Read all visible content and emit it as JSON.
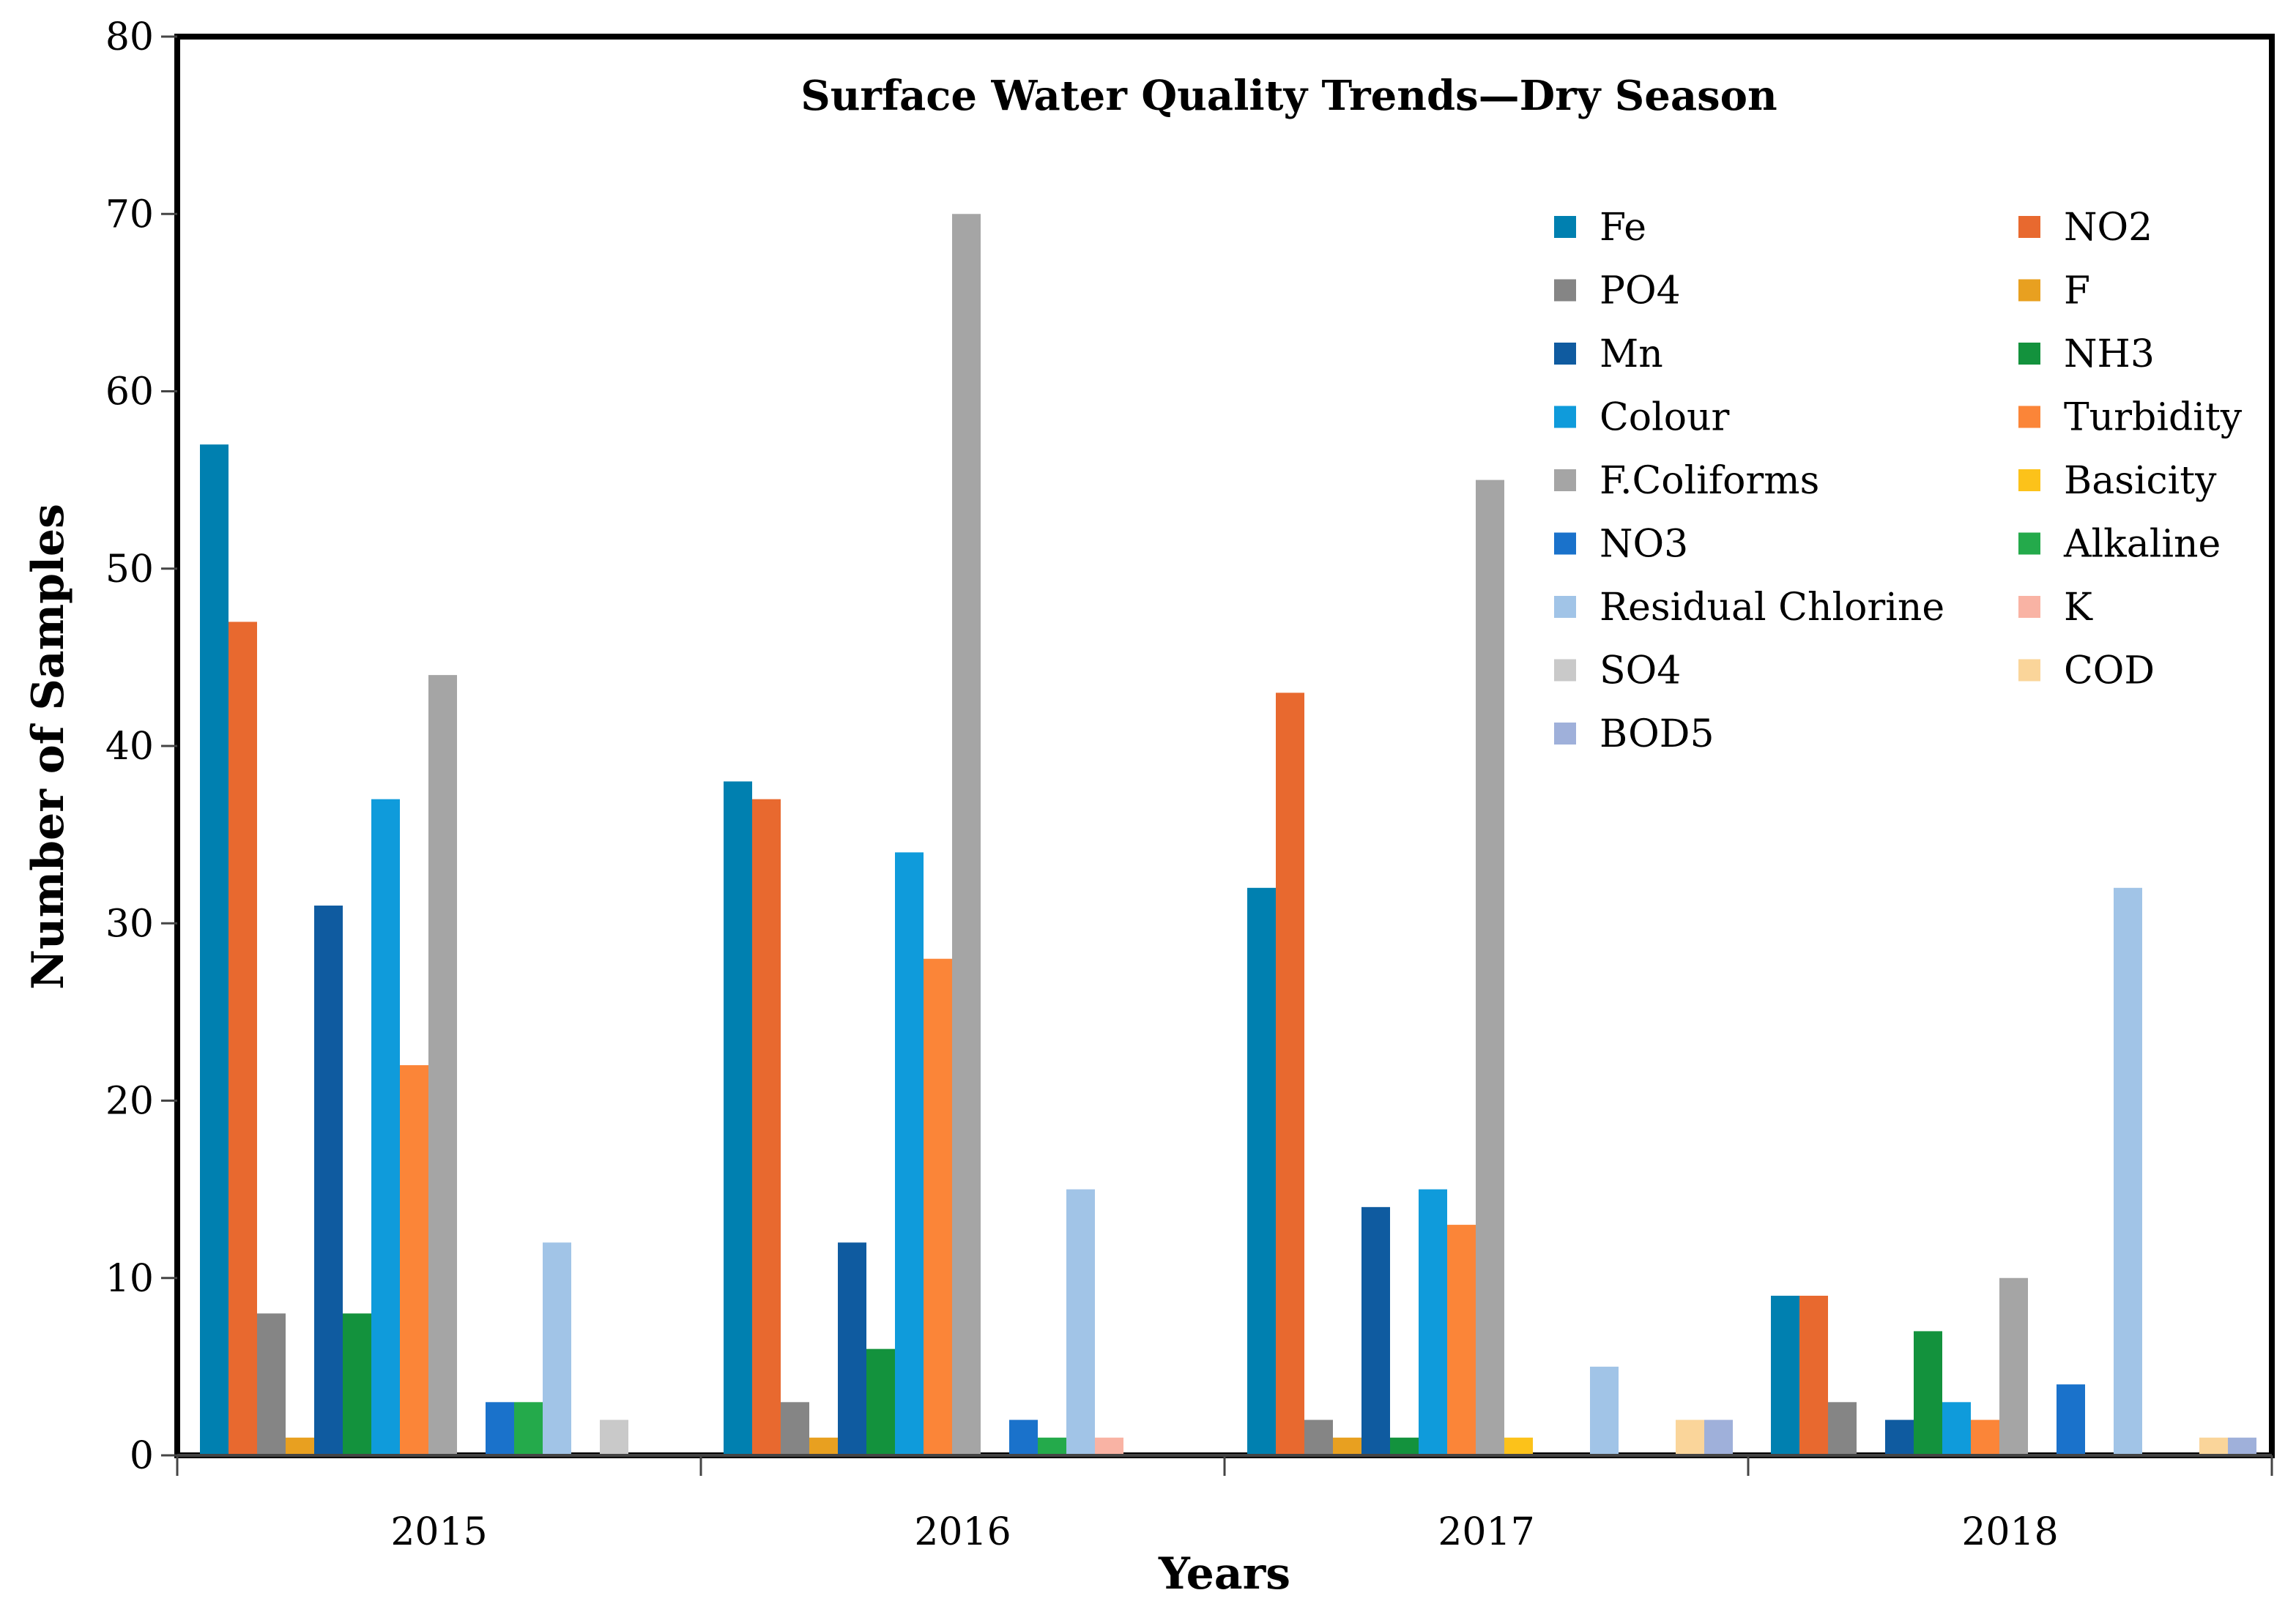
{
  "chart_data": {
    "type": "bar",
    "title": "Surface Water Quality Trends—Dry Season",
    "xlabel": "Years",
    "ylabel": "Number of Samples",
    "ylim": [
      0,
      80
    ],
    "yticks": [
      0,
      10,
      20,
      30,
      40,
      50,
      60,
      70,
      80
    ],
    "grid": false,
    "legend_position": "top-right",
    "categories": [
      "2015",
      "2016",
      "2017",
      "2018"
    ],
    "series": [
      {
        "name": "Fe",
        "color": "#0080B0",
        "values": [
          57,
          38,
          32,
          9
        ]
      },
      {
        "name": "NO2",
        "color": "#E8692F",
        "values": [
          47,
          37,
          43,
          9
        ]
      },
      {
        "name": "PO4",
        "color": "#858585",
        "values": [
          8,
          3,
          2,
          3
        ]
      },
      {
        "name": "F",
        "color": "#E8A020",
        "values": [
          1,
          1,
          1,
          0
        ]
      },
      {
        "name": "Mn",
        "color": "#0F5BA0",
        "values": [
          31,
          12,
          14,
          2
        ]
      },
      {
        "name": "NH3",
        "color": "#13923D",
        "values": [
          8,
          6,
          1,
          7
        ]
      },
      {
        "name": "Colour",
        "color": "#0F9BDB",
        "values": [
          37,
          34,
          15,
          3
        ]
      },
      {
        "name": "Turbidity",
        "color": "#FB8538",
        "values": [
          22,
          28,
          13,
          2
        ]
      },
      {
        "name": "F.Coliforms",
        "color": "#A5A5A5",
        "values": [
          44,
          70,
          55,
          10
        ]
      },
      {
        "name": "Basicity",
        "color": "#FCC21A",
        "values": [
          0,
          0,
          1,
          0
        ]
      },
      {
        "name": "NO3",
        "color": "#1A72CB",
        "values": [
          3,
          2,
          0,
          4
        ]
      },
      {
        "name": "Alkaline",
        "color": "#24AA4B",
        "values": [
          3,
          1,
          0,
          0
        ]
      },
      {
        "name": "Residual Chlorine",
        "color": "#A1C4E7",
        "values": [
          12,
          15,
          5,
          32
        ]
      },
      {
        "name": "K",
        "color": "#F9B3A4",
        "values": [
          0,
          1,
          0,
          0
        ]
      },
      {
        "name": "SO4",
        "color": "#C9C9C9",
        "values": [
          2,
          0,
          0,
          0
        ]
      },
      {
        "name": "COD",
        "color": "#FAD59A",
        "values": [
          0,
          0,
          2,
          1
        ]
      },
      {
        "name": "BOD5",
        "color": "#9FB0DA",
        "values": [
          0,
          0,
          2,
          1
        ]
      }
    ]
  }
}
